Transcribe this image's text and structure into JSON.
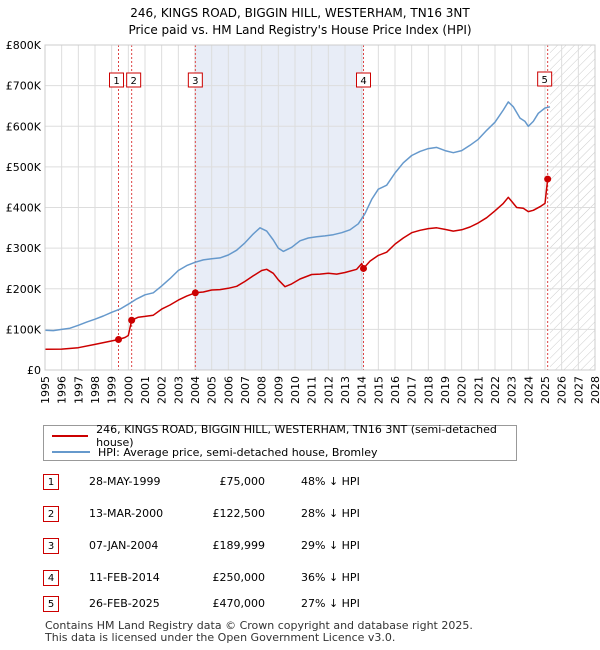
{
  "title": {
    "line1": "246, KINGS ROAD, BIGGIN HILL, WESTERHAM, TN16 3NT",
    "line2": "Price paid vs. HM Land Registry's House Price Index (HPI)"
  },
  "colors": {
    "red": "#cc0000",
    "blue": "#6699cc",
    "shade": "#e8edf7",
    "grid": "#dddddd"
  },
  "chart_data": {
    "type": "line",
    "xlim": [
      1995,
      2028
    ],
    "ylim": [
      0,
      800000
    ],
    "xticks": [
      1995,
      1996,
      1997,
      1998,
      1999,
      2000,
      2001,
      2002,
      2003,
      2004,
      2005,
      2006,
      2007,
      2008,
      2009,
      2010,
      2011,
      2012,
      2013,
      2014,
      2015,
      2016,
      2017,
      2018,
      2019,
      2020,
      2021,
      2022,
      2023,
      2024,
      2025,
      2026,
      2027,
      2028
    ],
    "yticks": [
      {
        "value": 0,
        "label": "£0"
      },
      {
        "value": 100000,
        "label": "£100K"
      },
      {
        "value": 200000,
        "label": "£200K"
      },
      {
        "value": 300000,
        "label": "£300K"
      },
      {
        "value": 400000,
        "label": "£400K"
      },
      {
        "value": 500000,
        "label": "£500K"
      },
      {
        "value": 600000,
        "label": "£600K"
      },
      {
        "value": 700000,
        "label": "£700K"
      },
      {
        "value": 800000,
        "label": "£800K"
      }
    ],
    "shaded_ranges": [
      [
        2004.02,
        2014.11
      ]
    ],
    "future_hatch_start": 2025.3,
    "series": [
      {
        "name": "246, KINGS ROAD, BIGGIN HILL, WESTERHAM, TN16 3NT (semi-detached house)",
        "color": "#cc0000",
        "points": [
          [
            1995.0,
            51000
          ],
          [
            1996.0,
            51500
          ],
          [
            1997.0,
            55000
          ],
          [
            1998.0,
            63000
          ],
          [
            1998.8,
            70000
          ],
          [
            1999.41,
            75000
          ],
          [
            1999.8,
            80000
          ],
          [
            2000.0,
            85000
          ],
          [
            2000.2,
            122500
          ],
          [
            2000.6,
            130000
          ],
          [
            2001.0,
            132000
          ],
          [
            2001.5,
            135000
          ],
          [
            2002.0,
            150000
          ],
          [
            2002.5,
            160000
          ],
          [
            2003.0,
            172000
          ],
          [
            2003.5,
            182000
          ],
          [
            2004.02,
            189999
          ],
          [
            2004.5,
            192000
          ],
          [
            2005.0,
            197000
          ],
          [
            2005.5,
            198000
          ],
          [
            2006.0,
            201000
          ],
          [
            2006.5,
            206000
          ],
          [
            2007.0,
            218000
          ],
          [
            2007.5,
            232000
          ],
          [
            2008.0,
            245000
          ],
          [
            2008.3,
            248000
          ],
          [
            2008.7,
            238000
          ],
          [
            2009.0,
            222000
          ],
          [
            2009.4,
            205000
          ],
          [
            2009.8,
            212000
          ],
          [
            2010.3,
            224000
          ],
          [
            2011.0,
            235000
          ],
          [
            2011.5,
            236000
          ],
          [
            2012.0,
            238000
          ],
          [
            2012.5,
            236000
          ],
          [
            2013.0,
            240000
          ],
          [
            2013.7,
            248000
          ],
          [
            2014.0,
            262000
          ],
          [
            2014.11,
            250000
          ],
          [
            2014.5,
            268000
          ],
          [
            2015.0,
            282000
          ],
          [
            2015.5,
            290000
          ],
          [
            2016.0,
            310000
          ],
          [
            2016.5,
            325000
          ],
          [
            2017.0,
            338000
          ],
          [
            2017.5,
            344000
          ],
          [
            2018.0,
            348000
          ],
          [
            2018.5,
            350000
          ],
          [
            2019.0,
            346000
          ],
          [
            2019.5,
            342000
          ],
          [
            2020.0,
            345000
          ],
          [
            2020.5,
            352000
          ],
          [
            2021.0,
            362000
          ],
          [
            2021.5,
            375000
          ],
          [
            2022.0,
            392000
          ],
          [
            2022.5,
            410000
          ],
          [
            2022.8,
            425000
          ],
          [
            2023.0,
            415000
          ],
          [
            2023.3,
            400000
          ],
          [
            2023.7,
            398000
          ],
          [
            2024.0,
            390000
          ],
          [
            2024.3,
            393000
          ],
          [
            2024.7,
            402000
          ],
          [
            2025.0,
            410000
          ],
          [
            2025.16,
            470000
          ],
          [
            2025.3,
            472000
          ]
        ]
      },
      {
        "name": "HPI: Average price, semi-detached house, Bromley",
        "color": "#6699cc",
        "points": [
          [
            1995.0,
            98000
          ],
          [
            1995.5,
            97000
          ],
          [
            1996.0,
            100000
          ],
          [
            1996.5,
            103000
          ],
          [
            1997.0,
            110000
          ],
          [
            1997.5,
            118000
          ],
          [
            1998.0,
            125000
          ],
          [
            1998.5,
            133000
          ],
          [
            1999.0,
            142000
          ],
          [
            1999.5,
            150000
          ],
          [
            2000.0,
            162000
          ],
          [
            2000.5,
            175000
          ],
          [
            2001.0,
            185000
          ],
          [
            2001.5,
            190000
          ],
          [
            2002.0,
            207000
          ],
          [
            2002.5,
            225000
          ],
          [
            2003.0,
            245000
          ],
          [
            2003.5,
            257000
          ],
          [
            2004.0,
            265000
          ],
          [
            2004.5,
            271000
          ],
          [
            2005.0,
            274000
          ],
          [
            2005.5,
            276000
          ],
          [
            2006.0,
            283000
          ],
          [
            2006.5,
            295000
          ],
          [
            2007.0,
            313000
          ],
          [
            2007.5,
            335000
          ],
          [
            2007.9,
            350000
          ],
          [
            2008.3,
            342000
          ],
          [
            2008.7,
            320000
          ],
          [
            2009.0,
            300000
          ],
          [
            2009.3,
            292000
          ],
          [
            2009.8,
            302000
          ],
          [
            2010.3,
            318000
          ],
          [
            2010.8,
            325000
          ],
          [
            2011.3,
            328000
          ],
          [
            2011.8,
            330000
          ],
          [
            2012.3,
            333000
          ],
          [
            2012.8,
            338000
          ],
          [
            2013.3,
            345000
          ],
          [
            2013.8,
            360000
          ],
          [
            2014.2,
            385000
          ],
          [
            2014.6,
            420000
          ],
          [
            2015.0,
            445000
          ],
          [
            2015.5,
            455000
          ],
          [
            2016.0,
            485000
          ],
          [
            2016.5,
            510000
          ],
          [
            2017.0,
            528000
          ],
          [
            2017.5,
            538000
          ],
          [
            2018.0,
            545000
          ],
          [
            2018.5,
            548000
          ],
          [
            2019.0,
            540000
          ],
          [
            2019.5,
            535000
          ],
          [
            2020.0,
            540000
          ],
          [
            2020.5,
            553000
          ],
          [
            2021.0,
            568000
          ],
          [
            2021.5,
            590000
          ],
          [
            2022.0,
            610000
          ],
          [
            2022.5,
            640000
          ],
          [
            2022.8,
            660000
          ],
          [
            2023.1,
            648000
          ],
          [
            2023.5,
            620000
          ],
          [
            2023.8,
            612000
          ],
          [
            2024.0,
            600000
          ],
          [
            2024.3,
            612000
          ],
          [
            2024.6,
            632000
          ],
          [
            2025.0,
            645000
          ],
          [
            2025.3,
            648000
          ]
        ]
      }
    ],
    "sales": [
      {
        "num": "1",
        "x": 1999.41,
        "price": 75000
      },
      {
        "num": "2",
        "x": 2000.2,
        "price": 122500
      },
      {
        "num": "3",
        "x": 2004.02,
        "price": 189999
      },
      {
        "num": "4",
        "x": 2014.11,
        "price": 250000
      },
      {
        "num": "5",
        "x": 2025.16,
        "price": 470000
      }
    ]
  },
  "legend": {
    "red_label": "246, KINGS ROAD, BIGGIN HILL, WESTERHAM, TN16 3NT (semi-detached house)",
    "blue_label": "HPI: Average price, semi-detached house, Bromley"
  },
  "transactions": [
    {
      "num": "1",
      "date": "28-MAY-1999",
      "price": "£75,000",
      "hpi": "48% ↓ HPI"
    },
    {
      "num": "2",
      "date": "13-MAR-2000",
      "price": "£122,500",
      "hpi": "28% ↓ HPI"
    },
    {
      "num": "3",
      "date": "07-JAN-2004",
      "price": "£189,999",
      "hpi": "29% ↓ HPI"
    },
    {
      "num": "4",
      "date": "11-FEB-2014",
      "price": "£250,000",
      "hpi": "36% ↓ HPI"
    },
    {
      "num": "5",
      "date": "26-FEB-2025",
      "price": "£470,000",
      "hpi": "27% ↓ HPI"
    }
  ],
  "footer": {
    "line1": "Contains HM Land Registry data © Crown copyright and database right 2025.",
    "line2": "This data is licensed under the Open Government Licence v3.0."
  }
}
